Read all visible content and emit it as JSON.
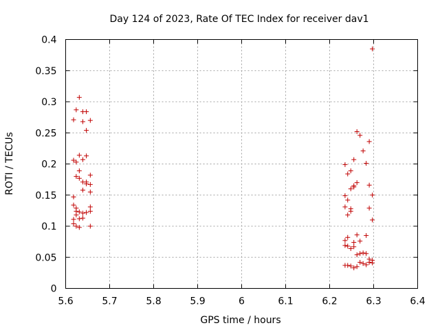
{
  "chart_data": {
    "type": "scatter",
    "title": "Day 124 of 2023, Rate Of TEC Index for receiver dav1",
    "xlabel": "GPS time / hours",
    "ylabel": "ROTI / TECUs",
    "xlim": [
      5.6,
      6.4
    ],
    "ylim": [
      0,
      0.4
    ],
    "grid": true,
    "marker": "+",
    "color": "#c00000",
    "xticks": [
      5.6,
      5.7,
      5.8,
      5.9,
      6.0,
      6.1,
      6.2,
      6.3,
      6.4
    ],
    "xtick_labels": [
      "5.6",
      "5.7",
      "5.8",
      "5.9",
      "6",
      "6.1",
      "6.2",
      "6.3",
      "6.4"
    ],
    "yticks": [
      0,
      0.05,
      0.1,
      0.15,
      0.2,
      0.25,
      0.3,
      0.35,
      0.4
    ],
    "ytick_labels": [
      "0",
      "0.05",
      "0.1",
      "0.15",
      "0.2",
      "0.25",
      "0.3",
      "0.35",
      "0.4"
    ],
    "points": [
      [
        5.618,
        0.271
      ],
      [
        5.618,
        0.206
      ],
      [
        5.618,
        0.147
      ],
      [
        5.618,
        0.134
      ],
      [
        5.618,
        0.111
      ],
      [
        5.618,
        0.104
      ],
      [
        5.624,
        0.287
      ],
      [
        5.624,
        0.203
      ],
      [
        5.624,
        0.18
      ],
      [
        5.624,
        0.129
      ],
      [
        5.624,
        0.124
      ],
      [
        5.624,
        0.118
      ],
      [
        5.624,
        0.1
      ],
      [
        5.631,
        0.307
      ],
      [
        5.631,
        0.214
      ],
      [
        5.631,
        0.189
      ],
      [
        5.631,
        0.177
      ],
      [
        5.631,
        0.123
      ],
      [
        5.631,
        0.112
      ],
      [
        5.631,
        0.098
      ],
      [
        5.639,
        0.284
      ],
      [
        5.639,
        0.268
      ],
      [
        5.639,
        0.207
      ],
      [
        5.639,
        0.171
      ],
      [
        5.639,
        0.158
      ],
      [
        5.639,
        0.121
      ],
      [
        5.639,
        0.113
      ],
      [
        5.647,
        0.284
      ],
      [
        5.647,
        0.254
      ],
      [
        5.647,
        0.213
      ],
      [
        5.647,
        0.171
      ],
      [
        5.647,
        0.168
      ],
      [
        5.647,
        0.122
      ],
      [
        5.656,
        0.27
      ],
      [
        5.656,
        0.182
      ],
      [
        5.656,
        0.167
      ],
      [
        5.656,
        0.155
      ],
      [
        5.656,
        0.131
      ],
      [
        5.656,
        0.124
      ],
      [
        5.656,
        0.1
      ],
      [
        6.235,
        0.199
      ],
      [
        6.235,
        0.149
      ],
      [
        6.235,
        0.131
      ],
      [
        6.235,
        0.077
      ],
      [
        6.235,
        0.069
      ],
      [
        6.235,
        0.037
      ],
      [
        6.241,
        0.184
      ],
      [
        6.241,
        0.142
      ],
      [
        6.241,
        0.118
      ],
      [
        6.241,
        0.082
      ],
      [
        6.241,
        0.068
      ],
      [
        6.241,
        0.037
      ],
      [
        6.248,
        0.189
      ],
      [
        6.248,
        0.16
      ],
      [
        6.248,
        0.128
      ],
      [
        6.248,
        0.124
      ],
      [
        6.248,
        0.064
      ],
      [
        6.248,
        0.036
      ],
      [
        6.255,
        0.207
      ],
      [
        6.255,
        0.165
      ],
      [
        6.255,
        0.163
      ],
      [
        6.255,
        0.074
      ],
      [
        6.255,
        0.067
      ],
      [
        6.255,
        0.033
      ],
      [
        6.262,
        0.252
      ],
      [
        6.262,
        0.17
      ],
      [
        6.262,
        0.086
      ],
      [
        6.262,
        0.054
      ],
      [
        6.262,
        0.035
      ],
      [
        6.269,
        0.246
      ],
      [
        6.269,
        0.076
      ],
      [
        6.269,
        0.056
      ],
      [
        6.269,
        0.042
      ],
      [
        6.276,
        0.221
      ],
      [
        6.276,
        0.057
      ],
      [
        6.276,
        0.04
      ],
      [
        6.283,
        0.201
      ],
      [
        6.283,
        0.085
      ],
      [
        6.283,
        0.056
      ],
      [
        6.283,
        0.038
      ],
      [
        6.29,
        0.236
      ],
      [
        6.29,
        0.166
      ],
      [
        6.29,
        0.129
      ],
      [
        6.29,
        0.047
      ],
      [
        6.29,
        0.042
      ],
      [
        6.297,
        0.385
      ],
      [
        6.297,
        0.15
      ],
      [
        6.297,
        0.11
      ],
      [
        6.297,
        0.045
      ],
      [
        6.297,
        0.041
      ]
    ]
  }
}
